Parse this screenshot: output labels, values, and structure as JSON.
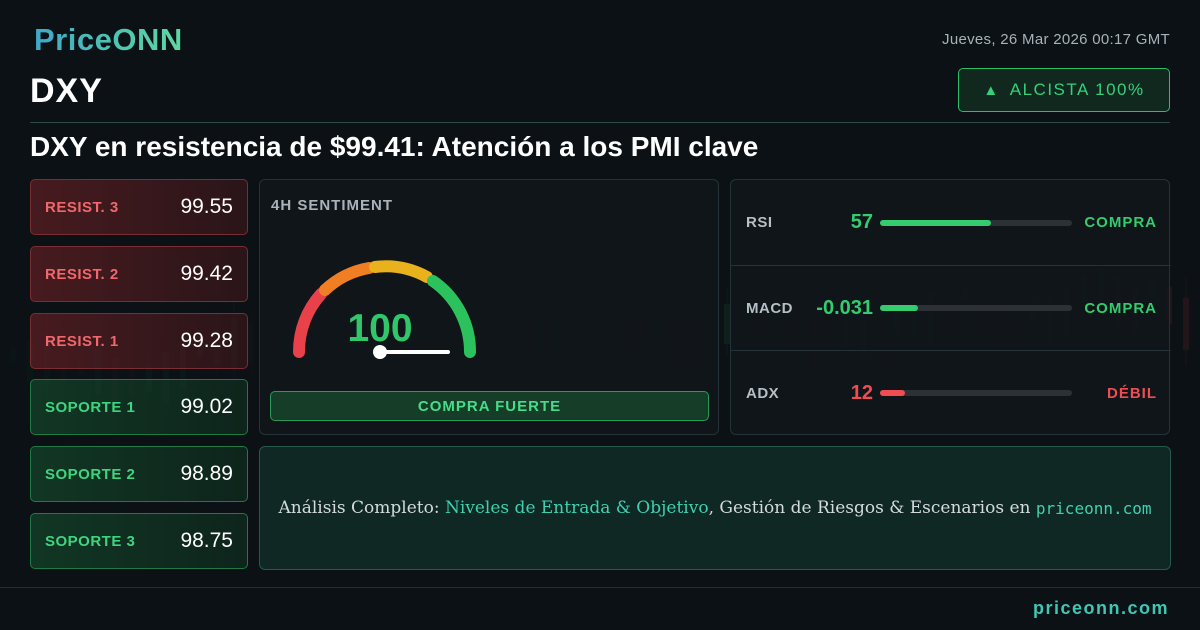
{
  "brand": {
    "logo_text": "PriceONN"
  },
  "header": {
    "date": "Jueves, 26 Mar 2026 00:17 GMT",
    "symbol": "DXY"
  },
  "trend_badge": {
    "arrow_icon": "triangle-up-icon",
    "label": "ALCISTA 100%"
  },
  "headline": "DXY en resistencia de $99.41: Atención a los PMI clave",
  "levels": {
    "resistance": [
      {
        "label": "RESIST. 3",
        "value": "99.55"
      },
      {
        "label": "RESIST. 2",
        "value": "99.42"
      },
      {
        "label": "RESIST. 1",
        "value": "99.28"
      }
    ],
    "support": [
      {
        "label": "SOPORTE 1",
        "value": "99.02"
      },
      {
        "label": "SOPORTE 2",
        "value": "98.89"
      },
      {
        "label": "SOPORTE 3",
        "value": "98.75"
      }
    ]
  },
  "sentiment": {
    "title": "4H SENTIMENT",
    "value": 100,
    "value_text": "100",
    "label": "COMPRA FUERTE"
  },
  "indicators": [
    {
      "name": "RSI",
      "value": "57",
      "level_pct": 58,
      "signal": "COMPRA",
      "color": "#33cc6e"
    },
    {
      "name": "MACD",
      "value": "-0.031",
      "level_pct": 20,
      "signal": "COMPRA",
      "color": "#33cc6e"
    },
    {
      "name": "ADX",
      "value": "12",
      "level_pct": 13,
      "signal": "DÉBIL",
      "color": "#ef4d52"
    }
  ],
  "cta": {
    "prefix": "Análisis Completo: ",
    "highlight": "Niveles de Entrada & Objetivo",
    "middle": ", Gestión de Riesgos & Escenarios en ",
    "site": "priceonn.com"
  },
  "footer": {
    "url": "priceonn.com"
  },
  "colors": {
    "bullish": "#33cc6e",
    "bearish": "#ef4d52",
    "accent": "#3fc7b4"
  }
}
